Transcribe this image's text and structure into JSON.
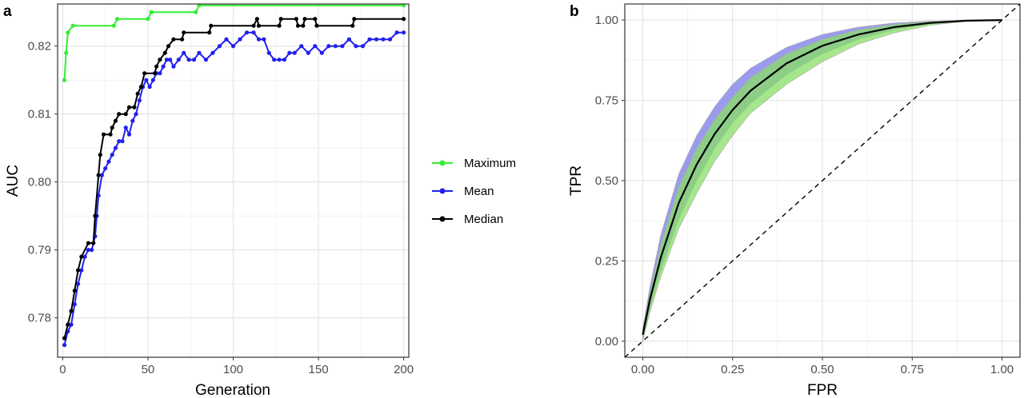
{
  "chart_data": [
    {
      "panel_label": "a",
      "type": "line",
      "xlabel": "Generation",
      "ylabel": "AUC",
      "xlim": [
        -3,
        203
      ],
      "ylim": [
        0.7742,
        0.8262
      ],
      "x_ticks": [
        0,
        50,
        100,
        150,
        200
      ],
      "x_tick_labels": [
        "0",
        "50",
        "100",
        "150",
        "200"
      ],
      "y_ticks": [
        0.78,
        0.79,
        0.8,
        0.81,
        0.82
      ],
      "y_tick_labels": [
        "0.78",
        "0.79",
        "0.80",
        "0.81",
        "0.82"
      ],
      "grid": true,
      "legend_position": "right",
      "series": [
        {
          "name": "Maximum",
          "color": "#33ee33",
          "points": [
            [
              1,
              0.815
            ],
            [
              2,
              0.819
            ],
            [
              3,
              0.822
            ],
            [
              6,
              0.823
            ],
            [
              30,
              0.823
            ],
            [
              32,
              0.824
            ],
            [
              50,
              0.824
            ],
            [
              52,
              0.825
            ],
            [
              78,
              0.825
            ],
            [
              80,
              0.826
            ],
            [
              200,
              0.826
            ]
          ]
        },
        {
          "name": "Mean",
          "color": "#2020ee",
          "points": [
            [
              1,
              0.776
            ],
            [
              3,
              0.778
            ],
            [
              5,
              0.779
            ],
            [
              7,
              0.782
            ],
            [
              9,
              0.785
            ],
            [
              11,
              0.787
            ],
            [
              13,
              0.789
            ],
            [
              15,
              0.79
            ],
            [
              17,
              0.79
            ],
            [
              19,
              0.792
            ],
            [
              20,
              0.795
            ],
            [
              21,
              0.798
            ],
            [
              23,
              0.801
            ],
            [
              25,
              0.802
            ],
            [
              27,
              0.803
            ],
            [
              29,
              0.804
            ],
            [
              31,
              0.805
            ],
            [
              33,
              0.806
            ],
            [
              35,
              0.806
            ],
            [
              37,
              0.808
            ],
            [
              39,
              0.807
            ],
            [
              41,
              0.809
            ],
            [
              43,
              0.81
            ],
            [
              45,
              0.812
            ],
            [
              47,
              0.814
            ],
            [
              49,
              0.815
            ],
            [
              51,
              0.814
            ],
            [
              53,
              0.815
            ],
            [
              55,
              0.816
            ],
            [
              57,
              0.816
            ],
            [
              59,
              0.817
            ],
            [
              61,
              0.818
            ],
            [
              63,
              0.818
            ],
            [
              65,
              0.817
            ],
            [
              68,
              0.818
            ],
            [
              71,
              0.819
            ],
            [
              74,
              0.818
            ],
            [
              77,
              0.818
            ],
            [
              80,
              0.819
            ],
            [
              84,
              0.818
            ],
            [
              88,
              0.819
            ],
            [
              92,
              0.82
            ],
            [
              96,
              0.821
            ],
            [
              100,
              0.82
            ],
            [
              104,
              0.821
            ],
            [
              108,
              0.822
            ],
            [
              112,
              0.822
            ],
            [
              115,
              0.821
            ],
            [
              118,
              0.821
            ],
            [
              121,
              0.819
            ],
            [
              124,
              0.818
            ],
            [
              127,
              0.818
            ],
            [
              130,
              0.818
            ],
            [
              133,
              0.819
            ],
            [
              136,
              0.819
            ],
            [
              140,
              0.82
            ],
            [
              144,
              0.819
            ],
            [
              148,
              0.82
            ],
            [
              152,
              0.819
            ],
            [
              156,
              0.82
            ],
            [
              160,
              0.82
            ],
            [
              164,
              0.82
            ],
            [
              168,
              0.821
            ],
            [
              172,
              0.82
            ],
            [
              176,
              0.82
            ],
            [
              180,
              0.821
            ],
            [
              184,
              0.821
            ],
            [
              188,
              0.821
            ],
            [
              192,
              0.821
            ],
            [
              196,
              0.822
            ],
            [
              200,
              0.822
            ]
          ]
        },
        {
          "name": "Median",
          "color": "#000000",
          "points": [
            [
              1,
              0.777
            ],
            [
              3,
              0.779
            ],
            [
              5,
              0.781
            ],
            [
              7,
              0.784
            ],
            [
              9,
              0.787
            ],
            [
              11,
              0.789
            ],
            [
              15,
              0.791
            ],
            [
              18,
              0.791
            ],
            [
              19,
              0.795
            ],
            [
              21,
              0.801
            ],
            [
              22,
              0.804
            ],
            [
              24,
              0.807
            ],
            [
              28,
              0.807
            ],
            [
              29,
              0.808
            ],
            [
              31,
              0.809
            ],
            [
              33,
              0.81
            ],
            [
              37,
              0.81
            ],
            [
              39,
              0.811
            ],
            [
              42,
              0.811
            ],
            [
              44,
              0.813
            ],
            [
              46,
              0.814
            ],
            [
              48,
              0.816
            ],
            [
              54,
              0.816
            ],
            [
              55,
              0.817
            ],
            [
              57,
              0.818
            ],
            [
              60,
              0.819
            ],
            [
              62,
              0.82
            ],
            [
              65,
              0.821
            ],
            [
              70,
              0.821
            ],
            [
              71,
              0.822
            ],
            [
              86,
              0.822
            ],
            [
              87,
              0.823
            ],
            [
              112,
              0.823
            ],
            [
              114,
              0.824
            ],
            [
              115,
              0.823
            ],
            [
              127,
              0.823
            ],
            [
              128,
              0.824
            ],
            [
              137,
              0.824
            ],
            [
              138,
              0.823
            ],
            [
              141,
              0.823
            ],
            [
              142,
              0.824
            ],
            [
              148,
              0.824
            ],
            [
              149,
              0.823
            ],
            [
              170,
              0.823
            ],
            [
              171,
              0.824
            ],
            [
              200,
              0.824
            ]
          ]
        }
      ]
    },
    {
      "panel_label": "b",
      "type": "line",
      "xlabel": "FPR",
      "ylabel": "TPR",
      "xlim": [
        -0.05,
        1.05
      ],
      "ylim": [
        -0.05,
        1.05
      ],
      "x_ticks": [
        0,
        0.25,
        0.5,
        0.75,
        1
      ],
      "x_tick_labels": [
        "0.00",
        "0.25",
        "0.50",
        "0.75",
        "1.00"
      ],
      "y_ticks": [
        0,
        0.25,
        0.5,
        0.75,
        1
      ],
      "y_tick_labels": [
        "0.00",
        "0.25",
        "0.50",
        "0.75",
        "1.00"
      ],
      "grid": true,
      "reference_line": {
        "style": "dashed",
        "color": "#000000",
        "points": [
          [
            -0.05,
            -0.05
          ],
          [
            1.05,
            1.05
          ]
        ]
      },
      "bands": [
        {
          "color": "#7a7ae8",
          "points_upper": [
            [
              0,
              0.04
            ],
            [
              0.02,
              0.17
            ],
            [
              0.05,
              0.33
            ],
            [
              0.1,
              0.52
            ],
            [
              0.15,
              0.64
            ],
            [
              0.2,
              0.73
            ],
            [
              0.25,
              0.8
            ],
            [
              0.3,
              0.85
            ],
            [
              0.4,
              0.915
            ],
            [
              0.5,
              0.955
            ],
            [
              0.6,
              0.978
            ],
            [
              0.7,
              0.991
            ],
            [
              0.8,
              0.997
            ],
            [
              0.9,
              0.999
            ],
            [
              1,
              1
            ]
          ],
          "points_lower": [
            [
              0,
              0.0
            ],
            [
              0.02,
              0.1
            ],
            [
              0.05,
              0.22
            ],
            [
              0.1,
              0.38
            ],
            [
              0.15,
              0.5
            ],
            [
              0.2,
              0.6
            ],
            [
              0.25,
              0.68
            ],
            [
              0.3,
              0.74
            ],
            [
              0.4,
              0.83
            ],
            [
              0.5,
              0.895
            ],
            [
              0.6,
              0.94
            ],
            [
              0.7,
              0.97
            ],
            [
              0.8,
              0.988
            ],
            [
              0.9,
              0.997
            ],
            [
              1,
              1
            ]
          ]
        },
        {
          "color": "#88dd66",
          "points_upper": [
            [
              0,
              0.03
            ],
            [
              0.02,
              0.15
            ],
            [
              0.05,
              0.3
            ],
            [
              0.1,
              0.48
            ],
            [
              0.15,
              0.6
            ],
            [
              0.2,
              0.69
            ],
            [
              0.25,
              0.76
            ],
            [
              0.3,
              0.82
            ],
            [
              0.4,
              0.895
            ],
            [
              0.5,
              0.94
            ],
            [
              0.6,
              0.97
            ],
            [
              0.7,
              0.987
            ],
            [
              0.8,
              0.995
            ],
            [
              0.9,
              0.999
            ],
            [
              1,
              1
            ]
          ],
          "points_lower": [
            [
              0,
              0.0
            ],
            [
              0.02,
              0.09
            ],
            [
              0.05,
              0.2
            ],
            [
              0.1,
              0.35
            ],
            [
              0.15,
              0.46
            ],
            [
              0.2,
              0.56
            ],
            [
              0.25,
              0.64
            ],
            [
              0.3,
              0.71
            ],
            [
              0.4,
              0.8
            ],
            [
              0.5,
              0.87
            ],
            [
              0.6,
              0.925
            ],
            [
              0.7,
              0.96
            ],
            [
              0.8,
              0.984
            ],
            [
              0.9,
              0.996
            ],
            [
              1,
              1
            ]
          ]
        }
      ],
      "series": [
        {
          "name": "",
          "color": "#000000",
          "points": [
            [
              0,
              0.02
            ],
            [
              0.02,
              0.13
            ],
            [
              0.05,
              0.26
            ],
            [
              0.1,
              0.43
            ],
            [
              0.15,
              0.55
            ],
            [
              0.2,
              0.645
            ],
            [
              0.25,
              0.72
            ],
            [
              0.3,
              0.78
            ],
            [
              0.4,
              0.865
            ],
            [
              0.5,
              0.92
            ],
            [
              0.6,
              0.955
            ],
            [
              0.7,
              0.978
            ],
            [
              0.8,
              0.991
            ],
            [
              0.9,
              0.998
            ],
            [
              1,
              1
            ]
          ]
        }
      ]
    }
  ],
  "legend": [
    {
      "label": "Maximum",
      "color": "#33ee33"
    },
    {
      "label": "Mean",
      "color": "#2020ee"
    },
    {
      "label": "Median",
      "color": "#000000"
    }
  ]
}
